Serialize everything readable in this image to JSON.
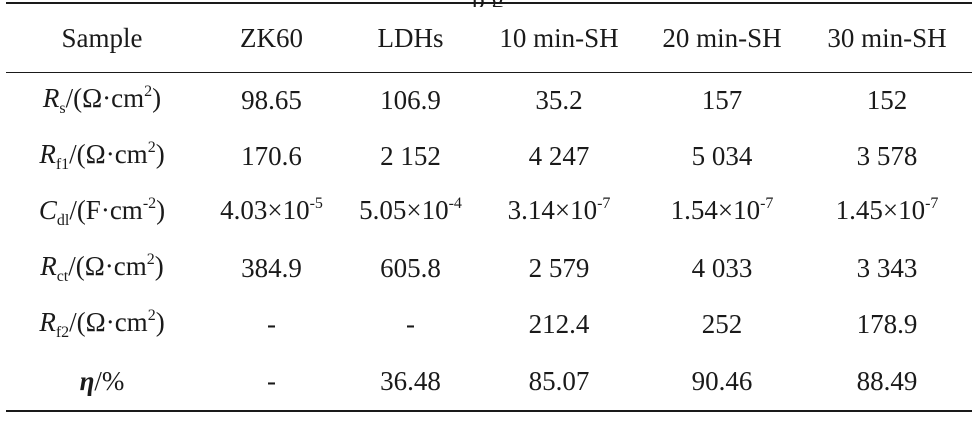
{
  "header_fragment": "p                                                                       g",
  "headers": [
    "Sample",
    "ZK60",
    "LDHs",
    "10 min-SH",
    "20 min-SH",
    "30 min-SH"
  ],
  "rows": [
    {
      "label": {
        "sym": "R",
        "sub": "s",
        "unit_pre": "/(Ω·cm",
        "sup": "2",
        "unit_post": ")"
      },
      "values": [
        "98.65",
        "106.9",
        "35.2",
        "157",
        "152"
      ]
    },
    {
      "label": {
        "sym": "R",
        "sub": "f1",
        "unit_pre": "/(Ω·cm",
        "sup": "2",
        "unit_post": ")"
      },
      "values": [
        "170.6",
        "2 152",
        "4 247",
        "5 034",
        "3 578"
      ]
    },
    {
      "label": {
        "sym": "C",
        "sub": "dl",
        "unit_pre": "/(F·cm",
        "sup": "-2",
        "unit_post": ")"
      },
      "values": [
        {
          "mant": "4.03×10",
          "exp": "-5"
        },
        {
          "mant": "5.05×10",
          "exp": "-4"
        },
        {
          "mant": "3.14×10",
          "exp": "-7"
        },
        {
          "mant": "1.54×10",
          "exp": "-7"
        },
        {
          "mant": "1.45×10",
          "exp": "-7"
        }
      ]
    },
    {
      "label": {
        "sym": "R",
        "sub": "ct",
        "unit_pre": "/(Ω·cm",
        "sup": "2",
        "unit_post": ")"
      },
      "values": [
        "384.9",
        "605.8",
        "2 579",
        "4 033",
        "3 343"
      ]
    },
    {
      "label": {
        "sym": "R",
        "sub": "f2",
        "unit_pre": "/(Ω·cm",
        "sup": "2",
        "unit_post": ")"
      },
      "values": [
        "-",
        "-",
        "212.4",
        "252",
        "178.9"
      ]
    },
    {
      "label": {
        "sym": "η",
        "unit_pre": "/%"
      },
      "values": [
        "-",
        "36.48",
        "85.07",
        "90.46",
        "88.49"
      ]
    }
  ]
}
